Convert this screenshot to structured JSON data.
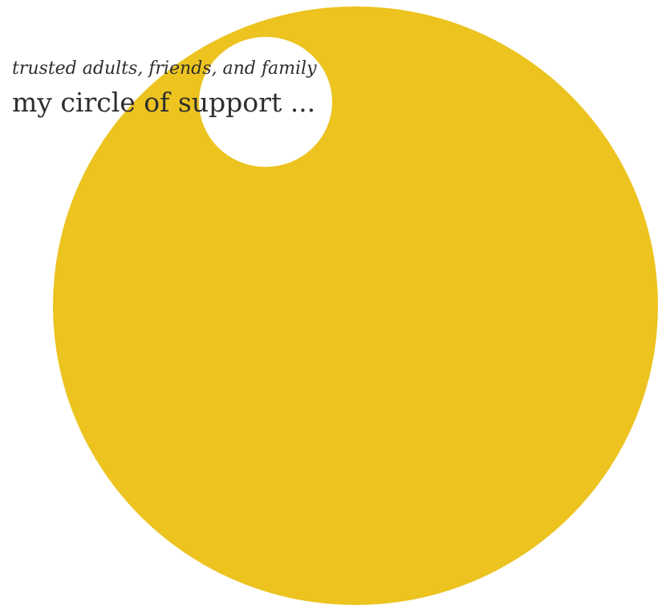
{
  "heading": {
    "subtitle": "trusted adults, friends, and family",
    "title": "my circle of support ..."
  },
  "colors": {
    "circle_fill": "#ecc31f",
    "inner_circle_fill": "#ffffff",
    "text": "#2f2f2f",
    "background": "#ffffff"
  }
}
